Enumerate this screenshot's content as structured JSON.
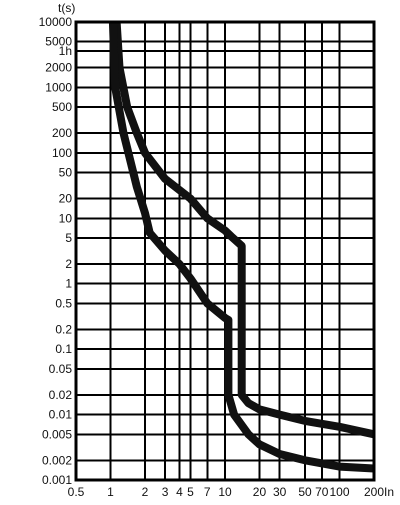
{
  "chart_data": {
    "type": "line",
    "title": "",
    "xlabel": "In",
    "ylabel": "t(s)",
    "x_scale": "log",
    "y_scale": "log",
    "xlim": [
      0.5,
      200
    ],
    "ylim": [
      0.001,
      10000
    ],
    "grid": true,
    "x_ticks": [
      {
        "value": 0.5,
        "label": "0.5"
      },
      {
        "value": 1,
        "label": "1"
      },
      {
        "value": 2,
        "label": "2"
      },
      {
        "value": 3,
        "label": "3"
      },
      {
        "value": 4,
        "label": "4"
      },
      {
        "value": 5,
        "label": "5"
      },
      {
        "value": 7,
        "label": "7"
      },
      {
        "value": 10,
        "label": "10"
      },
      {
        "value": 20,
        "label": "20"
      },
      {
        "value": 30,
        "label": "30"
      },
      {
        "value": 50,
        "label": "50"
      },
      {
        "value": 70,
        "label": "70"
      },
      {
        "value": 100,
        "label": "100"
      },
      {
        "value": 200,
        "label": "200"
      }
    ],
    "y_ticks": [
      {
        "value": 10000,
        "label": "10000"
      },
      {
        "value": 5000,
        "label": "5000"
      },
      {
        "value": 3600,
        "label": "1h"
      },
      {
        "value": 2000,
        "label": "2000"
      },
      {
        "value": 1000,
        "label": "1000"
      },
      {
        "value": 500,
        "label": "500"
      },
      {
        "value": 200,
        "label": "200"
      },
      {
        "value": 100,
        "label": "100"
      },
      {
        "value": 50,
        "label": "50"
      },
      {
        "value": 20,
        "label": "20"
      },
      {
        "value": 10,
        "label": "10"
      },
      {
        "value": 5,
        "label": "5"
      },
      {
        "value": 2,
        "label": "2"
      },
      {
        "value": 1,
        "label": "1"
      },
      {
        "value": 0.5,
        "label": "0.5"
      },
      {
        "value": 0.2,
        "label": "0.2"
      },
      {
        "value": 0.1,
        "label": "0.1"
      },
      {
        "value": 0.05,
        "label": "0.05"
      },
      {
        "value": 0.02,
        "label": "0.02"
      },
      {
        "value": 0.01,
        "label": "0.01"
      },
      {
        "value": 0.005,
        "label": "0.005"
      },
      {
        "value": 0.002,
        "label": "0.002"
      },
      {
        "value": 0.001,
        "label": "0.001"
      }
    ],
    "series": [
      {
        "points": [
          [
            1.13,
            10000
          ],
          [
            1.2,
            2000
          ],
          [
            1.4,
            500
          ],
          [
            1.7,
            200
          ],
          [
            2,
            100
          ],
          [
            3,
            40
          ],
          [
            5,
            20
          ],
          [
            7,
            10
          ],
          [
            10,
            6.5
          ],
          [
            11.3,
            5.3
          ],
          [
            14,
            3.8
          ],
          [
            14,
            0.02
          ],
          [
            16,
            0.015
          ],
          [
            20,
            0.012
          ],
          [
            30,
            0.01
          ],
          [
            50,
            0.008
          ],
          [
            100,
            0.0065
          ],
          [
            200,
            0.005
          ]
        ]
      },
      {
        "points": [
          [
            1.05,
            10000
          ],
          [
            1.1,
            1000
          ],
          [
            1.3,
            200
          ],
          [
            1.7,
            30
          ],
          [
            2,
            12
          ],
          [
            2.2,
            6
          ],
          [
            3,
            3.2
          ],
          [
            4,
            2
          ],
          [
            5,
            1.2
          ],
          [
            7,
            0.5
          ],
          [
            10,
            0.3
          ],
          [
            10.7,
            0.28
          ],
          [
            10.7,
            0.02
          ],
          [
            12,
            0.01
          ],
          [
            16,
            0.005
          ],
          [
            20,
            0.0035
          ],
          [
            30,
            0.0025
          ],
          [
            50,
            0.002
          ],
          [
            100,
            0.0016
          ],
          [
            200,
            0.0015
          ]
        ]
      }
    ]
  }
}
